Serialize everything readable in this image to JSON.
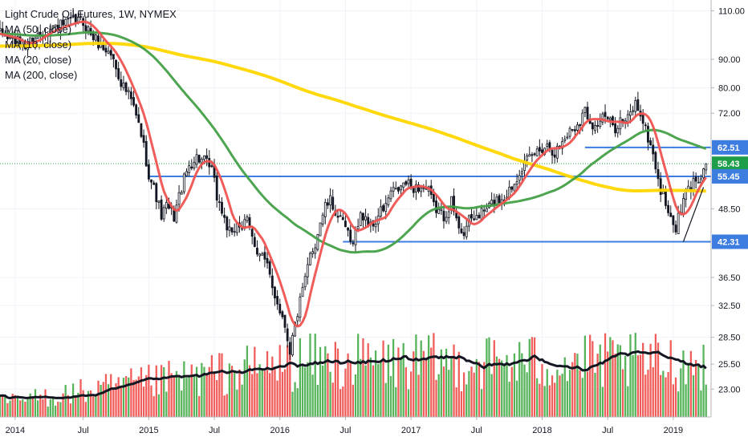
{
  "chart_data": {
    "type": "candlestick",
    "title": "Light Crude Oil Futures, 1W, NYMEX",
    "indicators": [
      "MA (50, close)",
      "MA (10, close)",
      "MA (20, close)",
      "MA (200, close)"
    ],
    "y_scale": "log",
    "ylim": [
      20.5,
      115
    ],
    "y_ticks": [
      {
        "label": "110.00",
        "value": 110
      },
      {
        "label": "90.00",
        "value": 90
      },
      {
        "label": "80.00",
        "value": 80
      },
      {
        "label": "72.00",
        "value": 72
      },
      {
        "label": "48.50",
        "value": 48.5
      },
      {
        "label": "36.50",
        "value": 36.5
      },
      {
        "label": "32.50",
        "value": 32.5
      },
      {
        "label": "28.50",
        "value": 28.5
      },
      {
        "label": "25.50",
        "value": 25.5
      },
      {
        "label": "23.00",
        "value": 23
      }
    ],
    "x_ticks": [
      {
        "label": "2014",
        "week": 0
      },
      {
        "label": "Jul",
        "week": 27
      },
      {
        "label": "2015",
        "week": 53
      },
      {
        "label": "Jul",
        "week": 79
      },
      {
        "label": "2016",
        "week": 105
      },
      {
        "label": "Jul",
        "week": 131
      },
      {
        "label": "2017",
        "week": 157
      },
      {
        "label": "Jul",
        "week": 183
      },
      {
        "label": "2018",
        "week": 209
      },
      {
        "label": "Jul",
        "week": 235
      },
      {
        "label": "2019",
        "week": 261
      }
    ],
    "week_range": [
      -6,
      276
    ],
    "horizontal_levels": [
      {
        "label": "62.51",
        "value": 62.51,
        "from_week": 226,
        "color": "#3d7de0"
      },
      {
        "label": "55.45",
        "value": 55.45,
        "from_week": 53,
        "color": "#3d7de0"
      },
      {
        "label": "42.31",
        "value": 42.31,
        "from_week": 130,
        "color": "#3d7de0"
      }
    ],
    "last_price": {
      "label": "58.43",
      "value": 58.43,
      "color": "#1f9e4a"
    },
    "trendline": {
      "from_week": 265,
      "from_value": 42.3,
      "to_week": 273,
      "to_value": 53.0
    },
    "price_anchors": [
      [
        -6,
        100
      ],
      [
        0,
        97
      ],
      [
        4,
        95
      ],
      [
        8,
        99
      ],
      [
        12,
        101
      ],
      [
        16,
        103
      ],
      [
        20,
        104
      ],
      [
        24,
        106
      ],
      [
        27,
        105
      ],
      [
        30,
        100
      ],
      [
        34,
        95
      ],
      [
        38,
        92
      ],
      [
        42,
        82
      ],
      [
        46,
        76
      ],
      [
        50,
        66
      ],
      [
        53,
        56
      ],
      [
        56,
        51
      ],
      [
        58,
        47
      ],
      [
        60,
        49
      ],
      [
        63,
        47
      ],
      [
        66,
        53
      ],
      [
        69,
        58
      ],
      [
        72,
        60
      ],
      [
        75,
        59
      ],
      [
        78,
        57
      ],
      [
        80,
        51
      ],
      [
        82,
        48
      ],
      [
        84,
        45
      ],
      [
        86,
        43
      ],
      [
        88,
        46
      ],
      [
        90,
        45
      ],
      [
        92,
        46
      ],
      [
        94,
        43
      ],
      [
        96,
        41
      ],
      [
        98,
        40
      ],
      [
        100,
        38
      ],
      [
        102,
        35
      ],
      [
        104,
        33
      ],
      [
        105,
        32
      ],
      [
        107,
        30
      ],
      [
        109,
        27
      ],
      [
        111,
        30
      ],
      [
        113,
        33
      ],
      [
        115,
        36
      ],
      [
        117,
        40
      ],
      [
        119,
        42
      ],
      [
        121,
        46
      ],
      [
        123,
        49
      ],
      [
        125,
        50
      ],
      [
        127,
        48
      ],
      [
        129,
        46
      ],
      [
        131,
        45
      ],
      [
        133,
        42
      ],
      [
        135,
        44
      ],
      [
        137,
        47
      ],
      [
        139,
        47
      ],
      [
        141,
        45
      ],
      [
        143,
        46
      ],
      [
        145,
        48
      ],
      [
        147,
        49
      ],
      [
        149,
        52
      ],
      [
        151,
        52
      ],
      [
        153,
        53
      ],
      [
        155,
        54
      ],
      [
        157,
        53
      ],
      [
        161,
        53
      ],
      [
        164,
        52
      ],
      [
        166,
        49
      ],
      [
        170,
        47
      ],
      [
        173,
        50
      ],
      [
        175,
        46
      ],
      [
        178,
        44
      ],
      [
        180,
        46
      ],
      [
        183,
        47
      ],
      [
        186,
        48
      ],
      [
        190,
        50
      ],
      [
        194,
        51
      ],
      [
        198,
        54
      ],
      [
        200,
        57
      ],
      [
        203,
        59
      ],
      [
        206,
        61
      ],
      [
        208,
        62
      ],
      [
        210,
        63
      ],
      [
        212,
        63
      ],
      [
        214,
        61
      ],
      [
        216,
        63
      ],
      [
        218,
        65
      ],
      [
        220,
        67
      ],
      [
        222,
        68
      ],
      [
        224,
        70
      ],
      [
        226,
        73
      ],
      [
        228,
        70
      ],
      [
        230,
        68
      ],
      [
        232,
        70
      ],
      [
        234,
        71
      ],
      [
        236,
        69
      ],
      [
        238,
        68
      ],
      [
        240,
        70
      ],
      [
        242,
        69
      ],
      [
        244,
        72
      ],
      [
        246,
        75
      ],
      [
        248,
        72
      ],
      [
        250,
        67
      ],
      [
        252,
        63
      ],
      [
        254,
        58
      ],
      [
        256,
        52
      ],
      [
        258,
        50
      ],
      [
        260,
        46
      ],
      [
        262,
        45
      ],
      [
        264,
        48
      ],
      [
        266,
        52
      ],
      [
        268,
        53
      ],
      [
        270,
        55
      ],
      [
        272,
        56
      ],
      [
        274,
        58.43
      ]
    ],
    "volume_style": {
      "up_color": "#4caf50",
      "down_color": "#ef5350"
    },
    "series": [
      {
        "name": "MA (10, close)",
        "color": "#ef5350"
      },
      {
        "name": "MA (50, close)",
        "color": "#43a047"
      },
      {
        "name": "MA (200, close)",
        "color": "#ffd600"
      }
    ]
  }
}
